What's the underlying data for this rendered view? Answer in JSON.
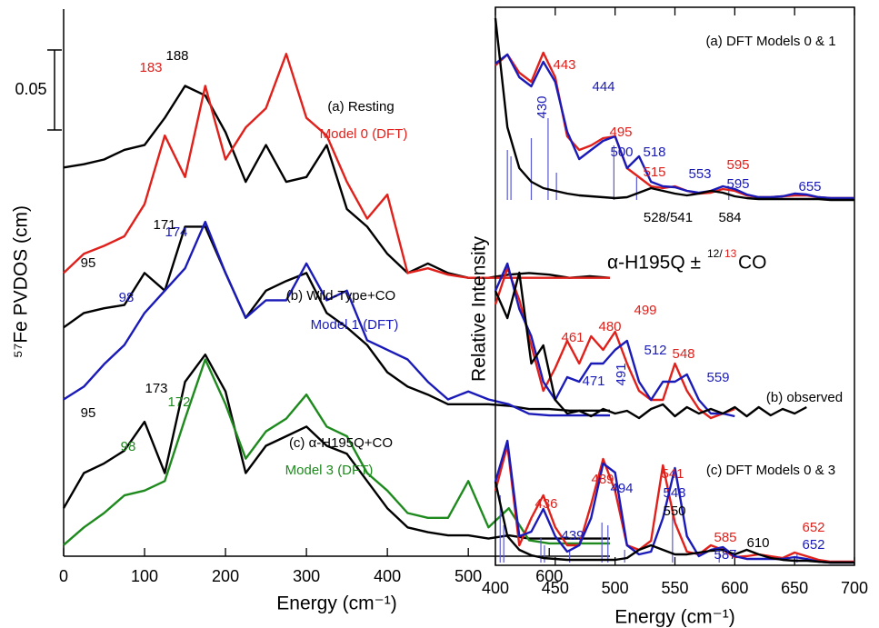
{
  "chart_data": [
    {
      "type": "line",
      "x_label": "Energy (cm⁻¹)",
      "y_label": "⁵⁷Fe PVDOS (cm)",
      "scale_bar": 0.05,
      "x": [
        0,
        25,
        50,
        75,
        100,
        125,
        150,
        175,
        200,
        225,
        250,
        275,
        300,
        325,
        350,
        375,
        400,
        425,
        450,
        475,
        500,
        525,
        550,
        575,
        600,
        625,
        650,
        675
      ],
      "xlim": [
        0,
        675
      ],
      "xticks": [
        0,
        100,
        200,
        300,
        400,
        500,
        600
      ],
      "ylim": [
        0,
        0.342
      ],
      "series": [
        {
          "color": "#000000",
          "values": [
            0.243,
            0.245,
            0.248,
            0.254,
            0.257,
            0.274,
            0.294,
            0.288,
            0.265,
            0.234,
            0.257,
            0.234,
            0.237,
            0.257,
            0.217,
            0.206,
            0.189,
            0.177,
            0.183,
            0.177,
            0.174,
            0.174,
            0.176,
            0.177,
            0.176,
            0.174,
            0.175,
            0.174
          ]
        },
        {
          "color": "#e0201b",
          "values": [
            0.177,
            0.189,
            0.194,
            0.2,
            0.22,
            0.263,
            0.237,
            0.294,
            0.248,
            0.268,
            0.28,
            0.314,
            0.274,
            0.263,
            0.234,
            0.211,
            0.226,
            0.177,
            0.18,
            0.176,
            0.174,
            0.174,
            0.174,
            0.174,
            0.174,
            0.174,
            0.174,
            0.174
          ]
        },
        {
          "color": "#000000",
          "values": [
            0.143,
            0.152,
            0.155,
            0.157,
            0.177,
            0.166,
            0.206,
            0.206,
            0.177,
            0.149,
            0.166,
            0.172,
            0.177,
            0.152,
            0.143,
            0.132,
            0.115,
            0.106,
            0.101,
            0.095,
            0.095,
            0.095,
            0.094,
            0.092,
            0.092,
            0.091,
            0.091,
            0.091
          ]
        },
        {
          "color": "#1a1ab8",
          "values": [
            0.098,
            0.106,
            0.12,
            0.132,
            0.152,
            0.166,
            0.18,
            0.209,
            0.177,
            0.149,
            0.16,
            0.16,
            0.183,
            0.16,
            0.166,
            0.135,
            0.129,
            0.123,
            0.109,
            0.098,
            0.103,
            0.098,
            0.095,
            0.089,
            0.088,
            0.088,
            0.088,
            0.088
          ]
        },
        {
          "color": "#000000",
          "values": [
            0.03,
            0.052,
            0.058,
            0.066,
            0.084,
            0.052,
            0.109,
            0.126,
            0.103,
            0.052,
            0.069,
            0.075,
            0.081,
            0.069,
            0.064,
            0.047,
            0.03,
            0.018,
            0.015,
            0.013,
            0.013,
            0.011,
            0.013,
            0.011,
            0.011,
            0.011,
            0.011,
            0.011
          ]
        },
        {
          "color": "#1e8a1e",
          "values": [
            0.007,
            0.018,
            0.027,
            0.038,
            0.041,
            0.047,
            0.086,
            0.123,
            0.095,
            0.061,
            0.078,
            0.086,
            0.101,
            0.081,
            0.075,
            0.052,
            0.041,
            0.027,
            0.024,
            0.024,
            0.047,
            0.018,
            0.03,
            0.01,
            0.008,
            0.008,
            0.008,
            0.008
          ]
        }
      ],
      "annotations": [
        {
          "text": "183",
          "color": "#e0201b"
        },
        {
          "text": "188",
          "color": "#000000"
        },
        {
          "text": "(a) Resting",
          "color": "#000000"
        },
        {
          "text": "Model 0 (DFT)",
          "color": "#e0201b"
        },
        {
          "text": "95",
          "color": "#000000"
        },
        {
          "text": "171",
          "color": "#000000"
        },
        {
          "text": "174",
          "color": "#1a1ab8"
        },
        {
          "text": "98",
          "color": "#1a1ab8"
        },
        {
          "text": "(b) Wild-Type+CO",
          "color": "#000000"
        },
        {
          "text": "Model 1 (DFT)",
          "color": "#1a1ab8"
        },
        {
          "text": "95",
          "color": "#000000"
        },
        {
          "text": "173",
          "color": "#000000"
        },
        {
          "text": "172",
          "color": "#1e8a1e"
        },
        {
          "text": "98",
          "color": "#1e8a1e"
        },
        {
          "text": "(c) α-H195Q+CO",
          "color": "#000000"
        },
        {
          "text": "Model 3 (DFT)",
          "color": "#1e8a1e"
        }
      ]
    },
    {
      "type": "line",
      "x_label": "Energy (cm⁻¹)",
      "y_label": "Relative Intensity",
      "x": [
        400,
        410,
        420,
        430,
        440,
        450,
        460,
        470,
        480,
        490,
        500,
        510,
        520,
        530,
        540,
        550,
        560,
        570,
        580,
        590,
        600,
        610,
        620,
        630,
        640,
        650,
        660,
        670,
        680,
        690,
        700
      ],
      "xlim": [
        400,
        700
      ],
      "xticks": [
        400,
        450,
        500,
        550,
        600,
        650,
        700
      ],
      "ylim": [
        0,
        614
      ],
      "series": [
        {
          "color": "#e0201b",
          "values": [
            550,
            562,
            542,
            532,
            564,
            537,
            472,
            457,
            462,
            470,
            472,
            437,
            427,
            417,
            415,
            417,
            412,
            409,
            410,
            414,
            412,
            407,
            405,
            405,
            406,
            407,
            407,
            405,
            404,
            404,
            404
          ]
        },
        {
          "color": "#1a1ab8",
          "values": [
            552,
            562,
            537,
            527,
            554,
            532,
            477,
            447,
            457,
            467,
            472,
            437,
            450,
            422,
            417,
            416,
            412,
            410,
            412,
            417,
            414,
            408,
            405,
            405,
            406,
            409,
            408,
            405,
            404,
            404,
            404
          ]
        },
        {
          "color": "#000000",
          "values": [
            602,
            482,
            437,
            422,
            415,
            412,
            409,
            407,
            406,
            405,
            404,
            405,
            410,
            415,
            412,
            409,
            407,
            409,
            412,
            410,
            406,
            404,
            403,
            403,
            403,
            403,
            403,
            403,
            402,
            402,
            402
          ]
        },
        {
          "color": "#e0201b",
          "values": [
            287,
            327,
            292,
            242,
            192,
            217,
            247,
            222,
            252,
            237,
            257,
            222,
            192,
            182,
            182,
            222,
            192,
            172,
            162,
            167,
            172,
            null,
            null,
            null,
            null,
            null,
            null,
            null,
            null,
            null,
            null
          ]
        },
        {
          "color": "#1a1ab8",
          "values": [
            302,
            332,
            282,
            252,
            202,
            182,
            207,
            202,
            222,
            222,
            237,
            247,
            202,
            182,
            202,
            202,
            210,
            182,
            167,
            167,
            164,
            null,
            null,
            null,
            null,
            null,
            null,
            null,
            null,
            null,
            null
          ]
        },
        {
          "color": "#000000",
          "values": [
            302,
            272,
            322,
            222,
            242,
            182,
            167,
            170,
            164,
            172,
            167,
            170,
            162,
            172,
            177,
            164,
            174,
            167,
            172,
            167,
            174,
            164,
            174,
            165,
            172,
            167,
            174,
            null,
            null,
            null,
            null
          ]
        },
        {
          "color": "#e0201b",
          "values": [
            82,
            132,
            22,
            52,
            77,
            42,
            22,
            22,
            67,
            117,
            82,
            22,
            17,
            27,
            110,
            47,
            15,
            12,
            22,
            17,
            9,
            10,
            12,
            10,
            8,
            14,
            10,
            6,
            4,
            4,
            4
          ]
        },
        {
          "color": "#1a1ab8",
          "values": [
            92,
            137,
            32,
            37,
            62,
            32,
            15,
            22,
            52,
            112,
            102,
            22,
            12,
            15,
            52,
            107,
            32,
            10,
            17,
            20,
            10,
            7,
            7,
            7,
            7,
            9,
            7,
            4,
            3,
            3,
            3
          ]
        },
        {
          "color": "#000000",
          "values": [
            92,
            32,
            17,
            11,
            8,
            7,
            6,
            6,
            6,
            6,
            6,
            8,
            17,
            22,
            17,
            12,
            12,
            14,
            16,
            17,
            12,
            17,
            12,
            8,
            6,
            5,
            5,
            4,
            3,
            3,
            3
          ]
        }
      ],
      "sticks": [
        {
          "color": "#5a5ad0",
          "baseline": 402,
          "x": [
            410,
            413,
            430,
            444,
            451,
            499,
            518,
            595
          ],
          "values": [
            457,
            450,
            470,
            492,
            432,
            462,
            427,
            417
          ]
        },
        {
          "color": "#5a5ad0",
          "baseline": 3,
          "x": [
            404,
            407,
            438,
            441,
            462,
            489,
            494,
            508,
            548,
            587,
            652
          ],
          "values": [
            77,
            44,
            30,
            22,
            17,
            47,
            44,
            17,
            57,
            17,
            12
          ]
        }
      ],
      "annotations": [
        {
          "text": "(a) DFT Models 0 & 1",
          "color": "#000000"
        },
        {
          "text": "443",
          "color": "#e0201b"
        },
        {
          "text": "444",
          "color": "#1a1ab8"
        },
        {
          "text": "430",
          "color": "#1a1ab8"
        },
        {
          "text": "495",
          "color": "#e0201b"
        },
        {
          "text": "500",
          "color": "#1a1ab8"
        },
        {
          "text": "518",
          "color": "#1a1ab8"
        },
        {
          "text": "515",
          "color": "#e0201b"
        },
        {
          "text": "553",
          "color": "#1a1ab8"
        },
        {
          "text": "595",
          "color": "#e0201b"
        },
        {
          "text": "595",
          "color": "#1a1ab8"
        },
        {
          "text": "655",
          "color": "#1a1ab8"
        },
        {
          "text": "528/541",
          "color": "#000000"
        },
        {
          "text": "584",
          "color": "#000000"
        },
        {
          "text": "α-H195Q ±",
          "color": "#000000"
        },
        {
          "text": "12/",
          "color": "#000000"
        },
        {
          "text": "13",
          "color": "#e0201b"
        },
        {
          "text": "CO",
          "color": "#000000"
        },
        {
          "text": "461",
          "color": "#e0201b"
        },
        {
          "text": "480",
          "color": "#e0201b"
        },
        {
          "text": "499",
          "color": "#e0201b"
        },
        {
          "text": "471",
          "color": "#1a1ab8"
        },
        {
          "text": "491",
          "color": "#1a1ab8"
        },
        {
          "text": "512",
          "color": "#1a1ab8"
        },
        {
          "text": "548",
          "color": "#e0201b"
        },
        {
          "text": "559",
          "color": "#1a1ab8"
        },
        {
          "text": "(b) observed",
          "color": "#000000"
        },
        {
          "text": "(c) DFT Models 0 & 3",
          "color": "#000000"
        },
        {
          "text": "436",
          "color": "#e0201b"
        },
        {
          "text": "439",
          "color": "#1a1ab8"
        },
        {
          "text": "489",
          "color": "#e0201b"
        },
        {
          "text": "494",
          "color": "#1a1ab8"
        },
        {
          "text": "541",
          "color": "#e0201b"
        },
        {
          "text": "548",
          "color": "#1a1ab8"
        },
        {
          "text": "550",
          "color": "#000000"
        },
        {
          "text": "585",
          "color": "#e0201b"
        },
        {
          "text": "587",
          "color": "#1a1ab8"
        },
        {
          "text": "610",
          "color": "#000000"
        },
        {
          "text": "652",
          "color": "#e0201b"
        },
        {
          "text": "652",
          "color": "#1a1ab8"
        }
      ]
    }
  ]
}
